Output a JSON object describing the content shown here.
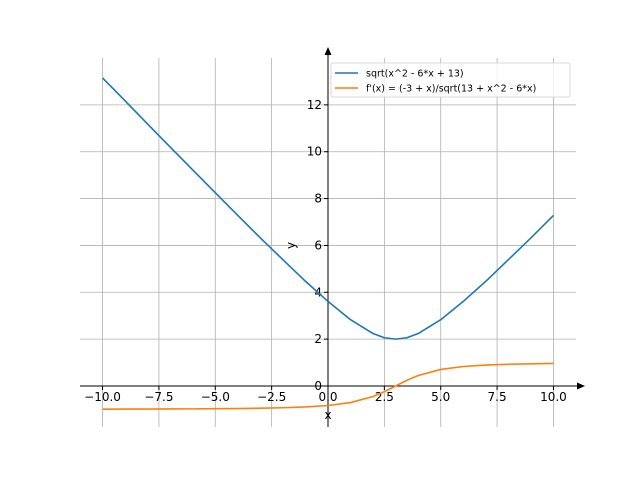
{
  "chart_data": {
    "type": "line",
    "title": "",
    "xlabel": "x",
    "ylabel": "y",
    "xlim": [
      -11,
      11
    ],
    "ylim": [
      -1.75,
      14.0
    ],
    "grid": true,
    "legend_position": "top-right",
    "x_ticks": [
      -10.0,
      -7.5,
      -5.0,
      -2.5,
      0.0,
      2.5,
      5.0,
      7.5,
      10.0
    ],
    "x_tick_labels": [
      "−10.0",
      "−7.5",
      "−5.0",
      "−2.5",
      "0.0",
      "2.5",
      "5.0",
      "7.5",
      "10.0"
    ],
    "y_ticks": [
      0,
      2,
      4,
      6,
      8,
      10,
      12
    ],
    "y_tick_labels": [
      "0",
      "2",
      "4",
      "6",
      "8",
      "10",
      "12"
    ],
    "series": [
      {
        "name": "sqrt(x^2 - 6*x + 13)",
        "color": "#1f77b4",
        "x": [
          -10,
          -9,
          -8,
          -7,
          -6,
          -5,
          -4,
          -3,
          -2,
          -1,
          0,
          1,
          2,
          2.5,
          3,
          3.5,
          4,
          5,
          6,
          7,
          8,
          9,
          10
        ],
        "y": [
          13.15,
          12.17,
          11.18,
          10.2,
          9.22,
          8.25,
          7.28,
          6.32,
          5.39,
          4.47,
          3.61,
          2.83,
          2.24,
          2.06,
          2.0,
          2.06,
          2.24,
          2.83,
          3.61,
          4.47,
          5.39,
          6.32,
          7.28
        ]
      },
      {
        "name": "f'(x) = (-3 + x)/sqrt(13 + x^2 - 6*x)",
        "color": "#ff7f0e",
        "x": [
          -10,
          -9,
          -8,
          -7,
          -6,
          -5,
          -4,
          -3,
          -2,
          -1,
          0,
          1,
          2,
          2.5,
          3,
          3.5,
          4,
          5,
          6,
          7,
          8,
          9,
          10
        ],
        "y": [
          -0.989,
          -0.986,
          -0.984,
          -0.981,
          -0.976,
          -0.97,
          -0.962,
          -0.949,
          -0.928,
          -0.894,
          -0.832,
          -0.707,
          -0.447,
          -0.243,
          0.0,
          0.243,
          0.447,
          0.707,
          0.832,
          0.894,
          0.928,
          0.949,
          0.962
        ]
      }
    ]
  }
}
